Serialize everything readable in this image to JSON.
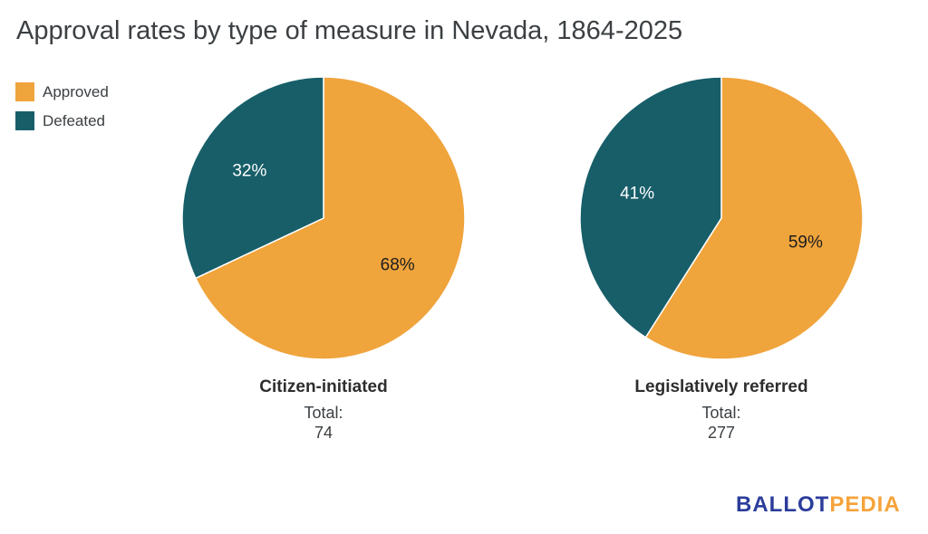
{
  "title": "Approval rates by type of measure in Nevada, 1864-2025",
  "legend": {
    "position": "top-left",
    "items": [
      {
        "label": "Approved",
        "color": "#F0A43C"
      },
      {
        "label": "Defeated",
        "color": "#175E69"
      }
    ]
  },
  "chart_data": [
    {
      "type": "pie",
      "title": "Citizen-initiated",
      "categories": [
        "Approved",
        "Defeated"
      ],
      "values": [
        68,
        32
      ],
      "unit": "%",
      "slice_labels": [
        "68%",
        "32%"
      ],
      "colors": [
        "#F0A43C",
        "#175E69"
      ],
      "slice_label_colors": [
        "#1d1d1d",
        "#ffffff"
      ],
      "total_label": "Total:",
      "total": "74",
      "start_angle_deg": 0,
      "direction": "clockwise",
      "separator_color": "#ffffff"
    },
    {
      "type": "pie",
      "title": "Legislatively referred",
      "categories": [
        "Approved",
        "Defeated"
      ],
      "values": [
        59,
        41
      ],
      "unit": "%",
      "slice_labels": [
        "59%",
        "41%"
      ],
      "colors": [
        "#F0A43C",
        "#175E69"
      ],
      "slice_label_colors": [
        "#1d1d1d",
        "#ffffff"
      ],
      "total_label": "Total:",
      "total": "277",
      "start_angle_deg": 0,
      "direction": "clockwise",
      "separator_color": "#ffffff"
    }
  ],
  "logo": {
    "part1": "BALLOT",
    "part2": "PEDIA",
    "part1_color": "#2B3D9B",
    "part2_color": "#F6A33B"
  }
}
